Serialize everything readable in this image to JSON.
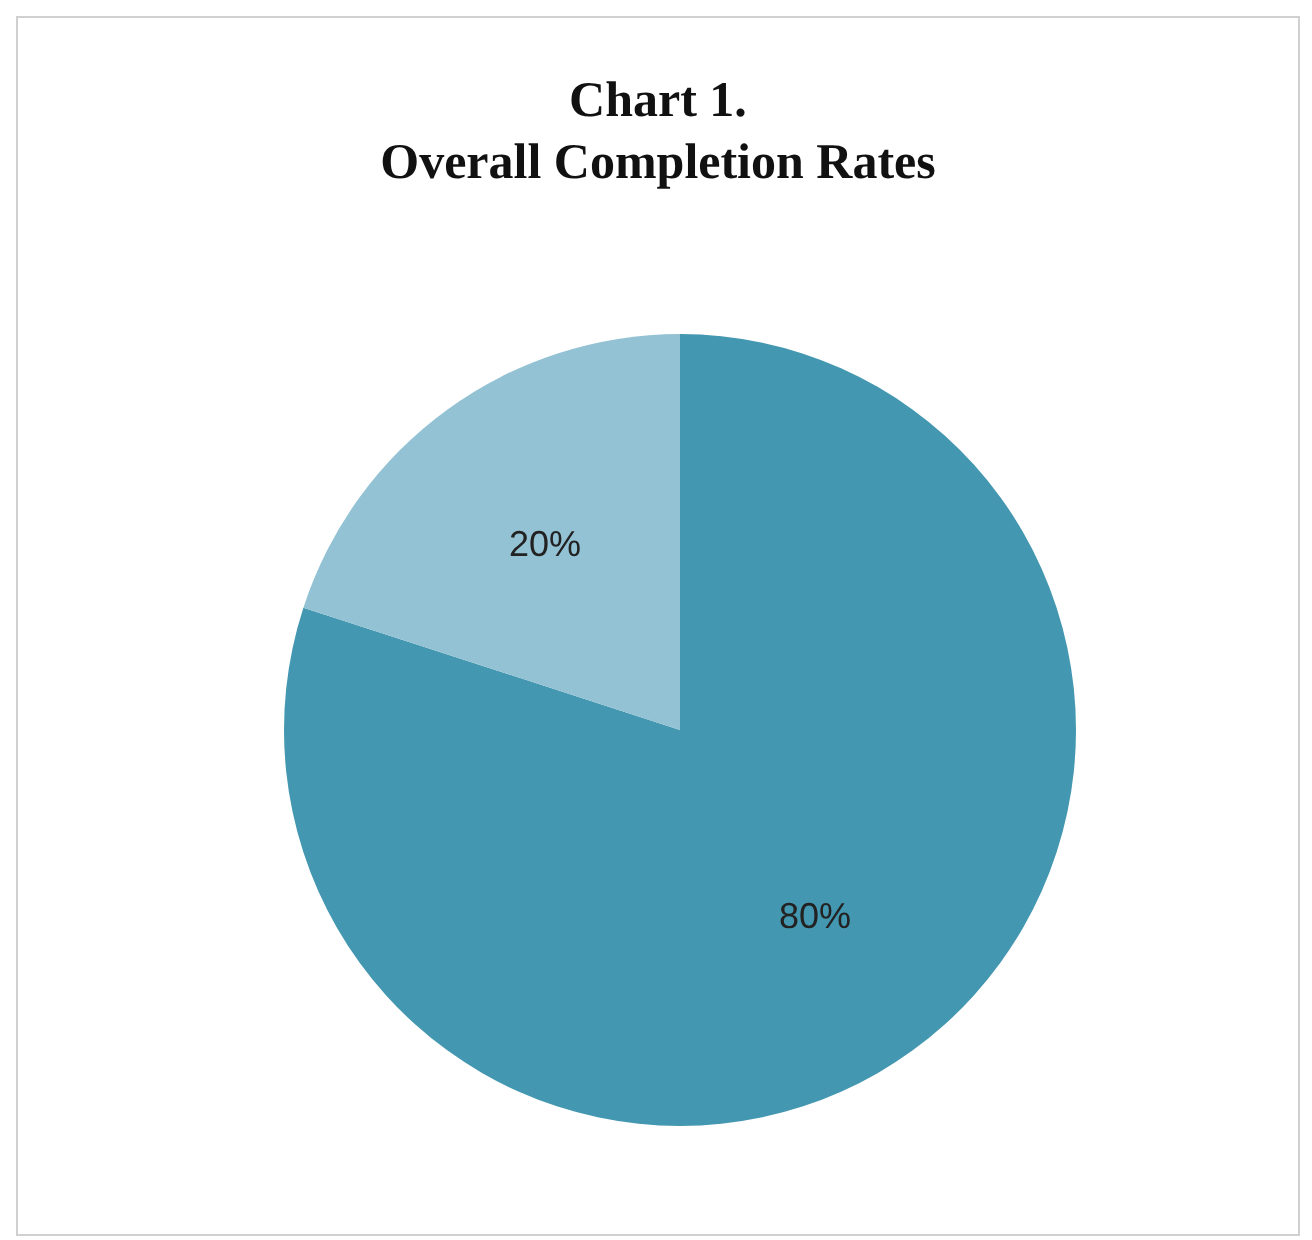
{
  "chart_data": {
    "type": "pie",
    "title": "Chart 1.",
    "subtitle": "Overall Completion Rates",
    "categories": [
      null,
      null
    ],
    "values": [
      80,
      20
    ],
    "value_labels": [
      "80%",
      "20%"
    ],
    "colors": [
      "#4397b0",
      "#93c2d4"
    ]
  }
}
